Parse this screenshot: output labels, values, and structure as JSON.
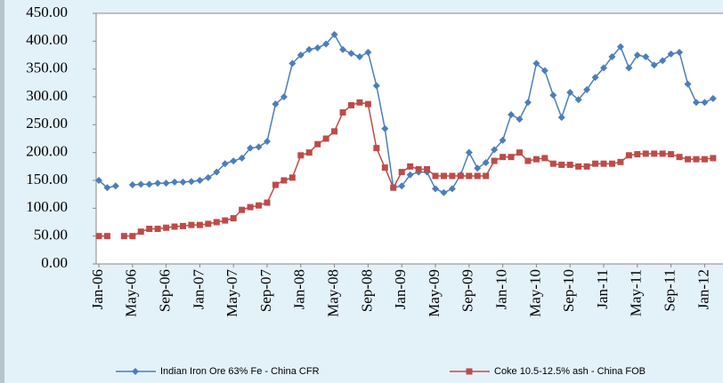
{
  "chart_data": {
    "type": "line",
    "categories": [
      "Jan-06",
      null,
      null,
      null,
      "May-06",
      null,
      null,
      null,
      "Sep-06",
      null,
      null,
      null,
      "Jan-07",
      null,
      null,
      null,
      "May-07",
      null,
      null,
      null,
      "Sep-07",
      null,
      null,
      null,
      "Jan-08",
      null,
      null,
      null,
      "May-08",
      null,
      null,
      null,
      "Sep-08",
      null,
      null,
      null,
      "Jan-09",
      null,
      null,
      null,
      "May-09",
      null,
      null,
      null,
      "Sep-09",
      null,
      null,
      null,
      "Jan-10",
      null,
      null,
      null,
      "May-10",
      null,
      null,
      null,
      "Sep-10",
      null,
      null,
      null,
      "Jan-11",
      null,
      null,
      null,
      "May-11",
      null,
      null,
      null,
      "Sep-11",
      null,
      null,
      null,
      "Jan-12",
      null
    ],
    "series": [
      {
        "name": "Indian Iron Ore 63% Fe - China CFR",
        "color": "#4a7ebb",
        "marker": "diamond",
        "values": [
          150,
          137,
          140,
          null,
          142,
          143,
          143,
          145,
          145,
          147,
          147,
          148,
          150,
          155,
          165,
          180,
          185,
          190,
          208,
          210,
          220,
          287,
          300,
          360,
          375,
          385,
          388,
          395,
          412,
          385,
          378,
          372,
          380,
          320,
          243,
          137,
          140,
          160,
          165,
          165,
          135,
          128,
          135,
          160,
          200,
          172,
          182,
          205,
          222,
          268,
          260,
          290,
          360,
          347,
          303,
          263,
          308,
          295,
          313,
          335,
          352,
          372,
          390,
          352,
          375,
          372,
          357,
          365,
          377,
          380,
          323,
          290,
          290,
          297
        ]
      },
      {
        "name": "Coke 10.5-12.5% ash - China FOB",
        "color": "#be4b48",
        "marker": "square",
        "values": [
          50,
          50,
          null,
          50,
          50,
          58,
          63,
          63,
          65,
          67,
          68,
          70,
          70,
          72,
          75,
          78,
          82,
          97,
          102,
          105,
          110,
          142,
          150,
          155,
          195,
          200,
          215,
          225,
          238,
          272,
          285,
          290,
          287,
          208,
          173,
          137,
          165,
          175,
          170,
          170,
          158,
          158,
          158,
          158,
          158,
          158,
          158,
          185,
          192,
          192,
          200,
          185,
          188,
          190,
          180,
          178,
          178,
          175,
          175,
          180,
          180,
          180,
          183,
          195,
          197,
          198,
          198,
          198,
          197,
          192,
          188,
          188,
          188,
          190
        ]
      }
    ],
    "ylim": [
      0,
      450
    ],
    "yticks": [
      {
        "value": 0,
        "label": "0.00"
      },
      {
        "value": 50,
        "label": "50.00"
      },
      {
        "value": 100,
        "label": "100.00"
      },
      {
        "value": 150,
        "label": "150.00"
      },
      {
        "value": 200,
        "label": "200.00"
      },
      {
        "value": 250,
        "label": "250.00"
      },
      {
        "value": 300,
        "label": "300.00"
      },
      {
        "value": 350,
        "label": "350.00"
      },
      {
        "value": 400,
        "label": "400.00"
      },
      {
        "value": 450,
        "label": "450.00"
      }
    ],
    "grid": false,
    "legend": "bottom"
  }
}
